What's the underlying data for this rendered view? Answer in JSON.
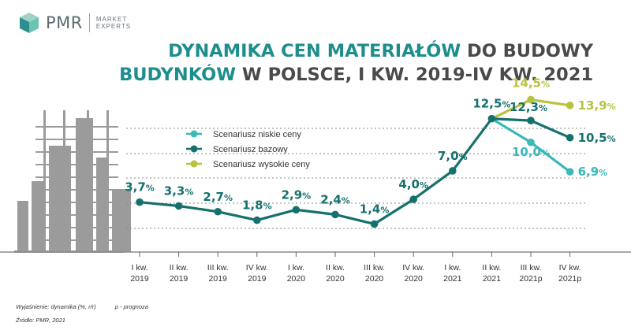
{
  "logo": {
    "name": "PMR",
    "tag1": "MARKET",
    "tag2": "EXPERTS"
  },
  "title": {
    "line1_teal": "DYNAMIKA CEN MATERIAŁÓW",
    "line1_dark": "DO BUDOWY",
    "line2_teal": "BUDYNKÓW",
    "line2_dark": "W POLSCE, I KW. 2019-IV KW. 2021"
  },
  "footer": {
    "note": "Wyjaśnienie: dynamika (%, r/r)",
    "forecast": "p - prognoza",
    "source": "Źródło: PMR, 2021"
  },
  "colors": {
    "low": "#3bb8b8",
    "base": "#16706e",
    "high": "#b9c240",
    "grid": "#8a8a8a",
    "building": "#8a8a8a"
  },
  "chart_data": {
    "type": "line",
    "categories": [
      "I kw. 2019",
      "II kw. 2019",
      "III kw. 2019",
      "IV kw. 2019",
      "I kw. 2020",
      "II kw. 2020",
      "III kw. 2020",
      "IV kw. 2020",
      "I kw. 2021",
      "II kw. 2021",
      "III kw. 2021p",
      "IV kw. 2021p"
    ],
    "ylim": [
      0,
      16
    ],
    "series": [
      {
        "name": "Scenariusz niskie ceny",
        "key": "low",
        "values": [
          null,
          null,
          null,
          null,
          null,
          null,
          null,
          null,
          null,
          12.5,
          10.0,
          6.9
        ],
        "labels": [
          null,
          null,
          null,
          null,
          null,
          null,
          null,
          null,
          null,
          null,
          "10,0",
          "6,9"
        ]
      },
      {
        "name": "Scenariusz bazowy",
        "key": "base",
        "values": [
          3.7,
          3.3,
          2.7,
          1.8,
          2.9,
          2.4,
          1.4,
          4.0,
          7.0,
          12.5,
          12.3,
          10.5
        ],
        "labels": [
          "3,7",
          "3,3",
          "2,7",
          "1,8",
          "2,9",
          "2,4",
          "1,4",
          "4,0",
          "7,0",
          "12,5",
          "12,3",
          "10,5"
        ]
      },
      {
        "name": "Scenariusz wysokie ceny",
        "key": "high",
        "values": [
          null,
          null,
          null,
          null,
          null,
          null,
          null,
          null,
          null,
          12.5,
          14.5,
          13.9
        ],
        "labels": [
          null,
          null,
          null,
          null,
          null,
          null,
          null,
          null,
          null,
          null,
          "14,5",
          "13,9"
        ]
      }
    ],
    "unit": "%"
  }
}
